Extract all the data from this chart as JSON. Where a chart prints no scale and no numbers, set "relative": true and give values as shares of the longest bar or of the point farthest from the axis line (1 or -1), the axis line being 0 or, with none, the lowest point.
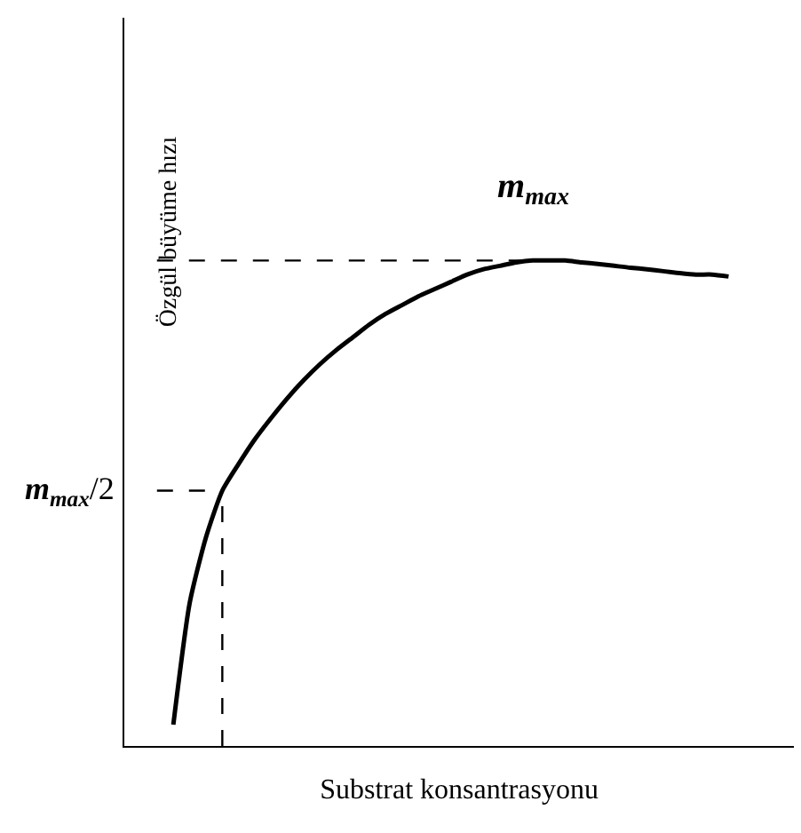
{
  "chart_data": {
    "type": "line",
    "relative": true,
    "xlabel": "Substrat konsantrasyonu",
    "ylabel": "Özgül büyüme hızı",
    "categories": [
      null,
      null,
      null,
      null,
      null,
      null,
      null,
      null,
      null,
      null,
      null,
      null,
      null,
      null,
      null,
      null,
      null,
      null,
      null,
      null,
      null,
      null,
      null,
      null,
      null,
      null,
      null,
      null,
      null,
      null,
      null,
      null,
      null,
      null,
      null
    ],
    "series": [
      {
        "color": "#000000",
        "values": [
          0.044,
          0.294,
          0.43,
          0.526,
          0.581,
          0.632,
          0.676,
          0.717,
          0.754,
          0.787,
          0.816,
          0.842,
          0.868,
          0.89,
          0.908,
          0.926,
          0.941,
          0.956,
          0.971,
          0.982,
          0.989,
          0.996,
          1,
          1,
          1,
          0.996,
          0.993,
          0.989,
          0.985,
          0.982,
          0.978,
          0.974,
          0.971,
          0.971,
          0.967
        ]
      }
    ],
    "ref_lines": [
      {
        "axis": "y",
        "value": 1,
        "label": "m$_{max}$",
        "line_style": "dashed"
      },
      {
        "axis": "y",
        "value": 0.526,
        "label": "m$_{max}$/2",
        "line_style": "dashed"
      }
    ],
    "legend": false,
    "marker": "none",
    "line_style": "solid",
    "tick_labels": false
  }
}
